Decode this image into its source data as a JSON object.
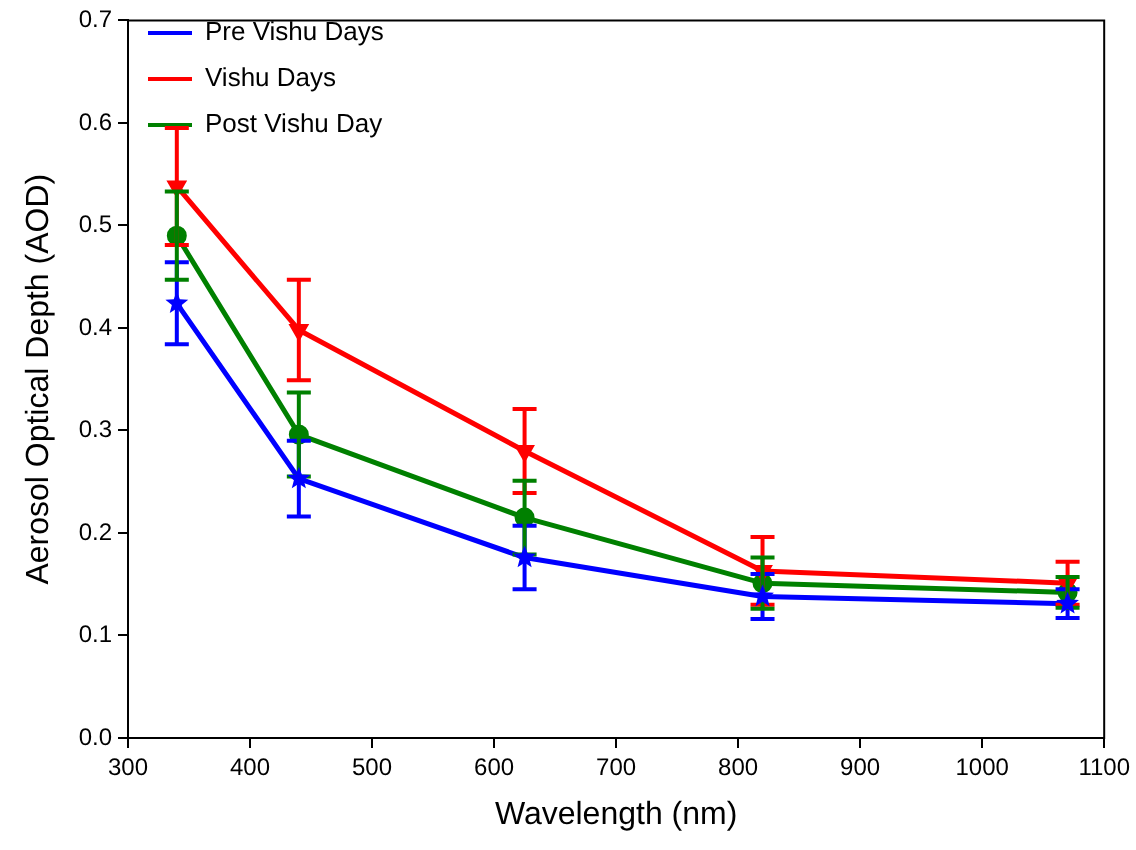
{
  "chart_data": {
    "type": "line",
    "xlabel": "Wavelength (nm)",
    "ylabel": "Aerosol Optical Depth (AOD)",
    "x": [
      340,
      440,
      625,
      820,
      1070
    ],
    "series": [
      {
        "name": "Pre Vishu Days",
        "color": "#0000ff",
        "marker": "star",
        "values": [
          0.424,
          0.253,
          0.176,
          0.138,
          0.131
        ],
        "errors": [
          0.04,
          0.037,
          0.031,
          0.022,
          0.014
        ]
      },
      {
        "name": "Vishu Days",
        "color": "#ff0000",
        "marker": "triangle",
        "values": [
          0.538,
          0.398,
          0.28,
          0.163,
          0.151
        ],
        "errors": [
          0.057,
          0.049,
          0.041,
          0.033,
          0.021
        ]
      },
      {
        "name": "Post Vishu Day",
        "color": "#008000",
        "marker": "circle",
        "values": [
          0.49,
          0.296,
          0.215,
          0.151,
          0.142
        ],
        "errors": [
          0.043,
          0.041,
          0.036,
          0.025,
          0.015
        ]
      }
    ],
    "xlim": [
      300,
      1100
    ],
    "xticks": [
      300,
      400,
      500,
      600,
      700,
      800,
      900,
      1000,
      1100
    ],
    "ylim": [
      0,
      0.7
    ],
    "yticks": [
      {
        "value": 0,
        "label": "0.0"
      },
      0.1,
      0.2,
      0.3,
      0.4,
      0.5,
      0.6,
      0.7
    ],
    "grid": false,
    "legend": "top left",
    "line_style": "solid"
  }
}
